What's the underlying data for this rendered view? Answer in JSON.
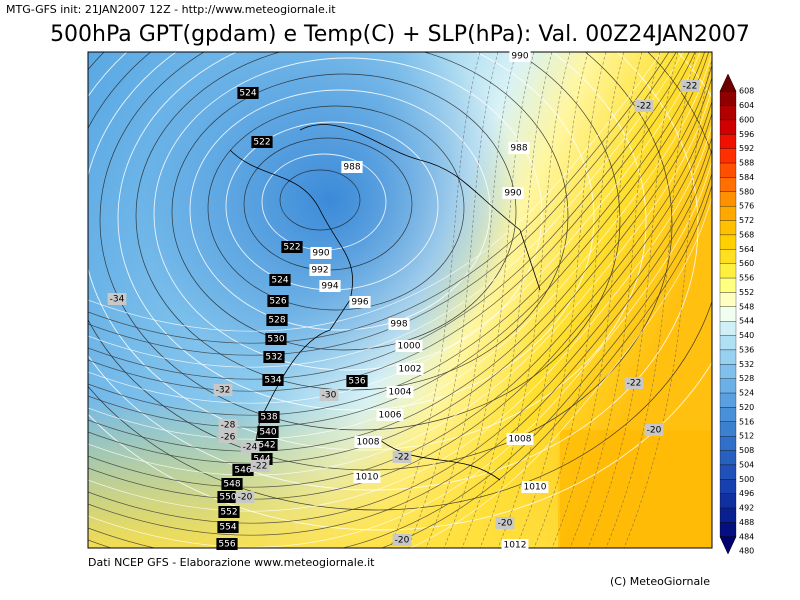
{
  "header": {
    "init": "MTG-GFS init: 21JAN2007 12Z - http://www.meteogiornale.it",
    "title": "500hPa GPT(gpdam) e Temp(C) + SLP(hPa): Val. 00Z24JAN2007"
  },
  "colorbar": {
    "levels": [
      608,
      604,
      600,
      596,
      592,
      588,
      584,
      580,
      576,
      572,
      568,
      564,
      560,
      556,
      552,
      548,
      544,
      540,
      536,
      532,
      528,
      524,
      520,
      516,
      512,
      508,
      504,
      500,
      496,
      492,
      488,
      484,
      480
    ],
    "colors": [
      "#700000",
      "#900000",
      "#b00000",
      "#d00000",
      "#f01000",
      "#ff3000",
      "#ff5000",
      "#ff7000",
      "#ff9000",
      "#ffa800",
      "#ffc000",
      "#ffd000",
      "#ffe020",
      "#fff040",
      "#ffff80",
      "#ffffc0",
      "#f0fff0",
      "#d0f0f8",
      "#b0e0f4",
      "#98d0f0",
      "#80c0ec",
      "#6cb0e8",
      "#5aa0e0",
      "#4890d8",
      "#3c80d0",
      "#3070c8",
      "#2860c0",
      "#2050b8",
      "#1840b0",
      "#1030a0",
      "#082090",
      "#041080",
      "#000070"
    ]
  },
  "map": {
    "gpt_labels": [
      524,
      522,
      522,
      524,
      526,
      528,
      530,
      532,
      534,
      536,
      538,
      540,
      542,
      544,
      546,
      548,
      550,
      552,
      554,
      556
    ],
    "slp_labels": [
      990,
      988,
      988,
      990,
      990,
      992,
      994,
      996,
      998,
      1000,
      1002,
      1004,
      1006,
      1008,
      1010,
      1008,
      1010,
      1012
    ],
    "temp_labels": [
      -22,
      -22,
      -34,
      -32,
      -30,
      -28,
      -26,
      -24,
      -22,
      -22,
      -20,
      -22,
      -20,
      -20,
      -20
    ]
  },
  "footer": {
    "source": "Dati NCEP GFS - Elaborazione www.meteogiornale.it",
    "copyright": "(C) MeteoGiornale"
  }
}
